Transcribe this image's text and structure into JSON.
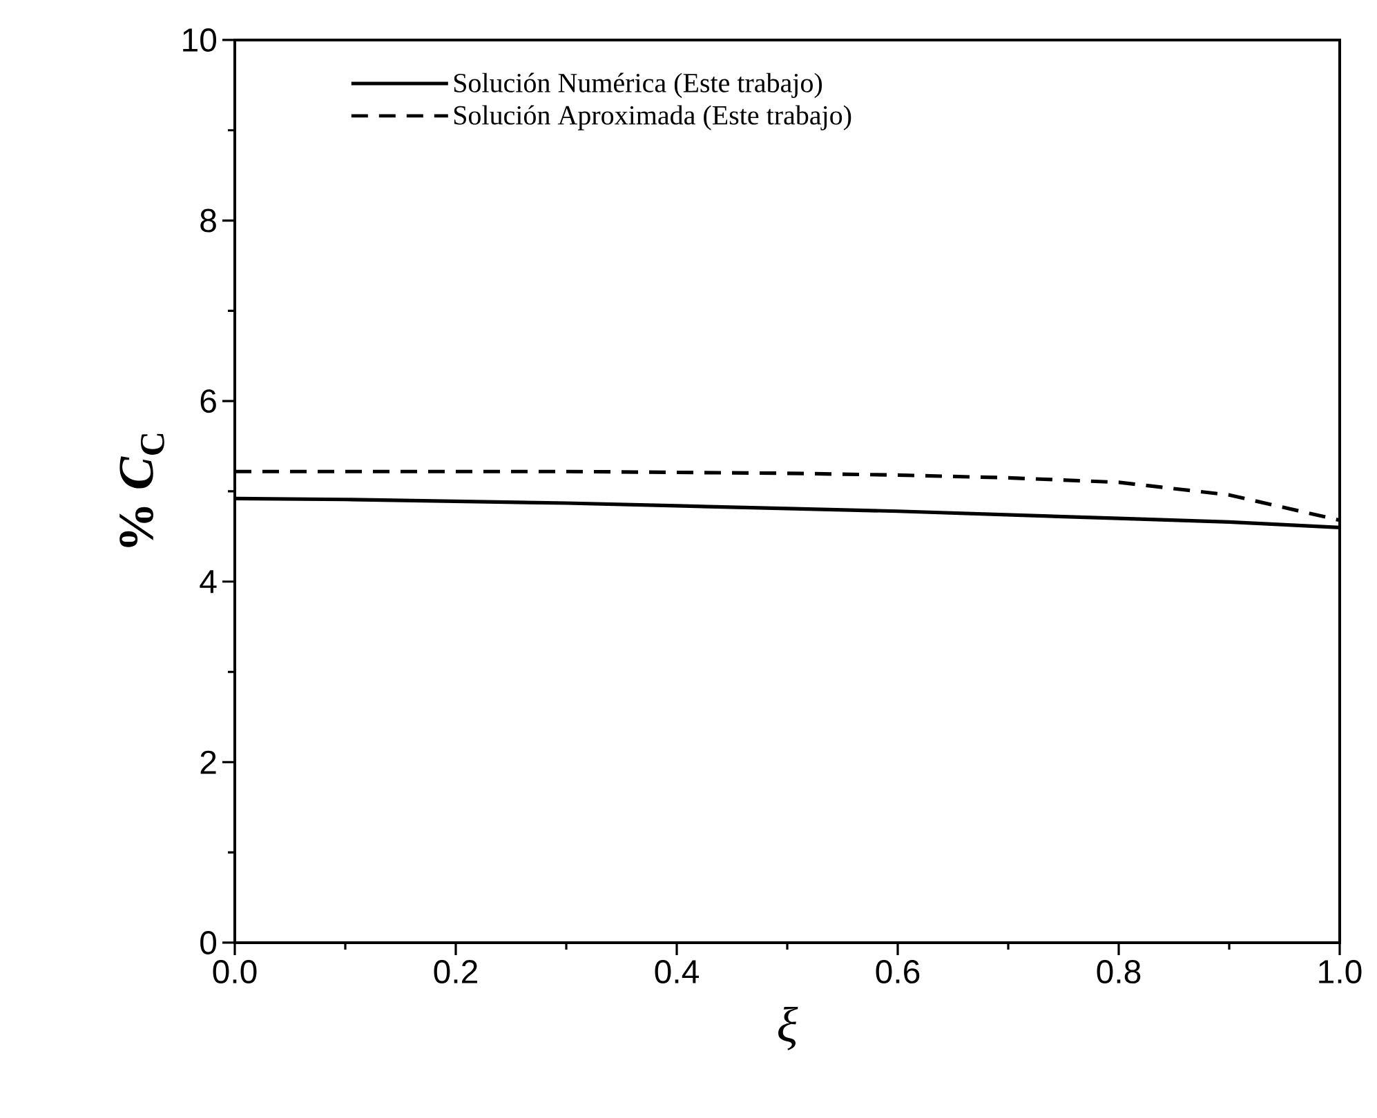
{
  "chart_data": {
    "type": "line",
    "xlabel": "*ξ*",
    "ylabel": "% *C*$_{C}$",
    "x": [
      0,
      0.1,
      0.2,
      0.3,
      0.4,
      0.5,
      0.6,
      0.7,
      0.8,
      0.9,
      1.0
    ],
    "series": [
      {
        "name": "Solución Numérica (Este trabajo)",
        "color": "#000000",
        "line_style": "solid",
        "values": [
          4.92,
          4.91,
          4.89,
          4.87,
          4.84,
          4.81,
          4.78,
          4.74,
          4.7,
          4.66,
          4.6
        ]
      },
      {
        "name": "Solución Aproximada (Este trabajo)",
        "color": "#000000",
        "line_style": "dashed",
        "values": [
          5.22,
          5.22,
          5.22,
          5.22,
          5.21,
          5.2,
          5.18,
          5.15,
          5.1,
          4.96,
          4.68
        ]
      }
    ],
    "xlim": [
      0,
      1.0
    ],
    "ylim": [
      0,
      10
    ],
    "xticks": [
      {
        "value": 0,
        "label": "0.0"
      },
      0.2,
      0.4,
      0.6,
      0.8,
      {
        "value": 1.0,
        "label": "1.0"
      }
    ],
    "yticks": [
      0,
      2,
      4,
      6,
      8,
      10
    ],
    "legend": "top left",
    "grid": false,
    "marker": "none"
  }
}
